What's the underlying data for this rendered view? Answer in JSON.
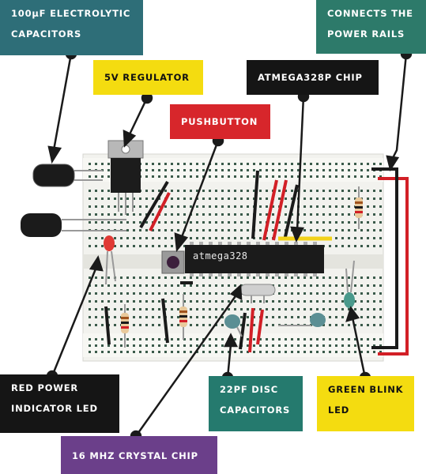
{
  "labels": {
    "capacitors": [
      "100µF ELECTROLYTIC",
      "CAPACITORS"
    ],
    "power_rails": [
      "CONNECTS THE",
      "POWER RAILS"
    ],
    "regulator": [
      "5V REGULATOR"
    ],
    "atmega": [
      "ATMEGA328P CHIP"
    ],
    "pushbutton": [
      "PUSHBUTTON"
    ],
    "red_led": [
      "RED POWER",
      "INDICATOR LED"
    ],
    "disc_caps": [
      "22PF DISC",
      "CAPACITORS"
    ],
    "green_led": [
      "GREEN BLINK",
      "LED"
    ],
    "crystal": [
      "16 MHZ CRYSTAL CHIP"
    ]
  },
  "chip_marking": "atmega328",
  "colors": {
    "teal": "#2e6e78",
    "green_teal": "#2d7a6a",
    "yellow": "#f4dc10",
    "black": "#151515",
    "red": "#d7262b",
    "purple": "#6b3f8a",
    "board": "#f2f2ee",
    "wire_red": "#d21f26",
    "wire_black": "#1a1a1a",
    "wire_yellow": "#f2d21a"
  }
}
